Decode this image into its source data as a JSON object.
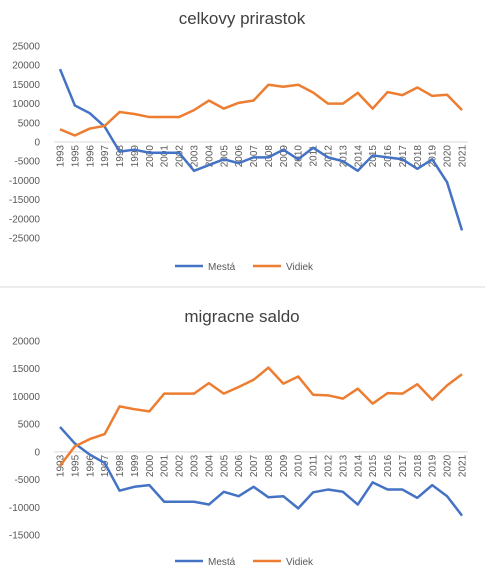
{
  "chart_data": [
    {
      "type": "line",
      "title": "celkovy prirastok",
      "categories": [
        "1993",
        "1995",
        "1996",
        "1997",
        "1998",
        "1999",
        "2000",
        "2001",
        "2002",
        "2003",
        "2004",
        "2005",
        "2006",
        "2007",
        "2008",
        "2009",
        "2010",
        "2011",
        "2012",
        "2013",
        "2014",
        "2015",
        "2016",
        "2017",
        "2018",
        "2019",
        "2020",
        "2021"
      ],
      "series": [
        {
          "name": "Mestá",
          "color": "#4472c4",
          "values": [
            19000,
            9500,
            7500,
            4000,
            -2500,
            -2000,
            -2800,
            -2800,
            -2800,
            -7500,
            -6000,
            -4500,
            -5500,
            -4000,
            -4000,
            -2000,
            -4500,
            -1500,
            -4000,
            -5000,
            -7500,
            -3500,
            -4000,
            -4500,
            -7000,
            -4500,
            -10500,
            -23000
          ]
        },
        {
          "name": "Vidiek",
          "color": "#ed7d31",
          "values": [
            3300,
            1700,
            3500,
            4200,
            7800,
            7300,
            6500,
            6500,
            6500,
            8300,
            10800,
            8700,
            10200,
            10800,
            14900,
            14400,
            14900,
            12900,
            10000,
            10000,
            12800,
            8700,
            13000,
            12200,
            14200,
            12000,
            12300,
            8300
          ]
        }
      ],
      "ylim": [
        -25000,
        25000
      ],
      "yticks": [
        -25000,
        -20000,
        -15000,
        -10000,
        -5000,
        0,
        5000,
        10000,
        15000,
        20000,
        25000
      ],
      "legend": "bottom"
    },
    {
      "type": "line",
      "title": "migracne saldo",
      "categories": [
        "1993",
        "1995",
        "1996",
        "1997",
        "1998",
        "1999",
        "2000",
        "2001",
        "2002",
        "2003",
        "2004",
        "2005",
        "2006",
        "2007",
        "2008",
        "2009",
        "2010",
        "2011",
        "2012",
        "2013",
        "2014",
        "2015",
        "2016",
        "2017",
        "2018",
        "2019",
        "2020",
        "2021"
      ],
      "series": [
        {
          "name": "Mestá",
          "color": "#4472c4",
          "values": [
            4500,
            1500,
            -500,
            -2000,
            -7000,
            -6300,
            -6000,
            -9000,
            -9000,
            -9000,
            -9500,
            -7200,
            -8000,
            -6300,
            -8200,
            -8000,
            -10200,
            -7300,
            -6800,
            -7200,
            -9500,
            -5500,
            -6800,
            -6800,
            -8300,
            -6000,
            -8000,
            -11500
          ]
        },
        {
          "name": "Vidiek",
          "color": "#ed7d31",
          "values": [
            -2500,
            1000,
            2300,
            3200,
            8200,
            7700,
            7300,
            10500,
            10500,
            10500,
            12400,
            10500,
            11700,
            13000,
            15200,
            12300,
            13600,
            10300,
            10200,
            9600,
            11400,
            8700,
            10600,
            10500,
            12200,
            9400,
            12000,
            14000
          ]
        }
      ],
      "ylim": [
        -15000,
        20000
      ],
      "yticks": [
        -15000,
        -10000,
        -5000,
        0,
        5000,
        10000,
        15000,
        20000
      ],
      "legend": "bottom"
    }
  ]
}
